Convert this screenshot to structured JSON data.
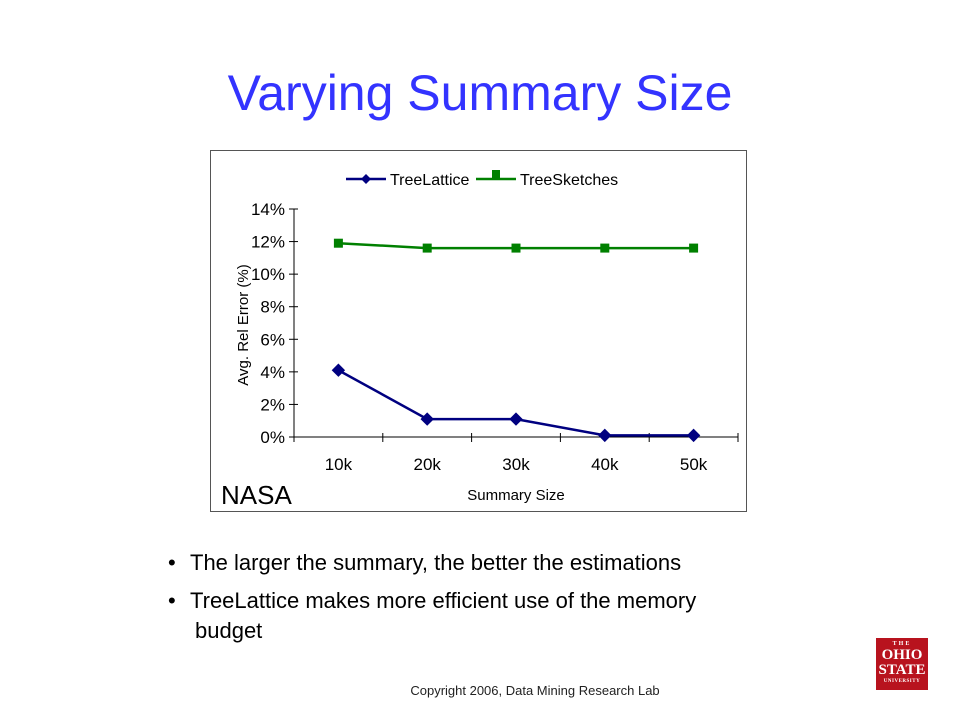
{
  "slide": {
    "title": "Varying Summary Size",
    "bullets": [
      {
        "line1": "The larger the summary, the better the estimations",
        "line2": ""
      },
      {
        "line1": "TreeLattice makes more efficient use of the memory",
        "line2": "budget"
      }
    ],
    "bullet_char": "•",
    "copyright": "Copyright 2006, Data Mining Research Lab",
    "logo": {
      "top": "THE",
      "line1": "OHIO",
      "line2": "STATE",
      "bottom": "UNIVERSITY"
    }
  },
  "chart_data": {
    "type": "line",
    "title": "",
    "annotation": "NASA",
    "xlabel": "Summary Size",
    "ylabel": "Avg. Rel Error (%)",
    "categories": [
      "10k",
      "20k",
      "30k",
      "40k",
      "50k"
    ],
    "yticks": [
      "0%",
      "2%",
      "4%",
      "6%",
      "8%",
      "10%",
      "12%",
      "14%"
    ],
    "ylim": [
      0,
      14
    ],
    "legend_position": "top",
    "grid": false,
    "series": [
      {
        "name": "TreeLattice",
        "values": [
          4.1,
          1.1,
          1.1,
          0.1,
          0.1
        ],
        "color": "#000080",
        "marker": "diamond"
      },
      {
        "name": "TreeSketches",
        "values": [
          11.9,
          11.6,
          11.6,
          11.6,
          11.6
        ],
        "color": "#008000",
        "marker": "square"
      }
    ]
  }
}
